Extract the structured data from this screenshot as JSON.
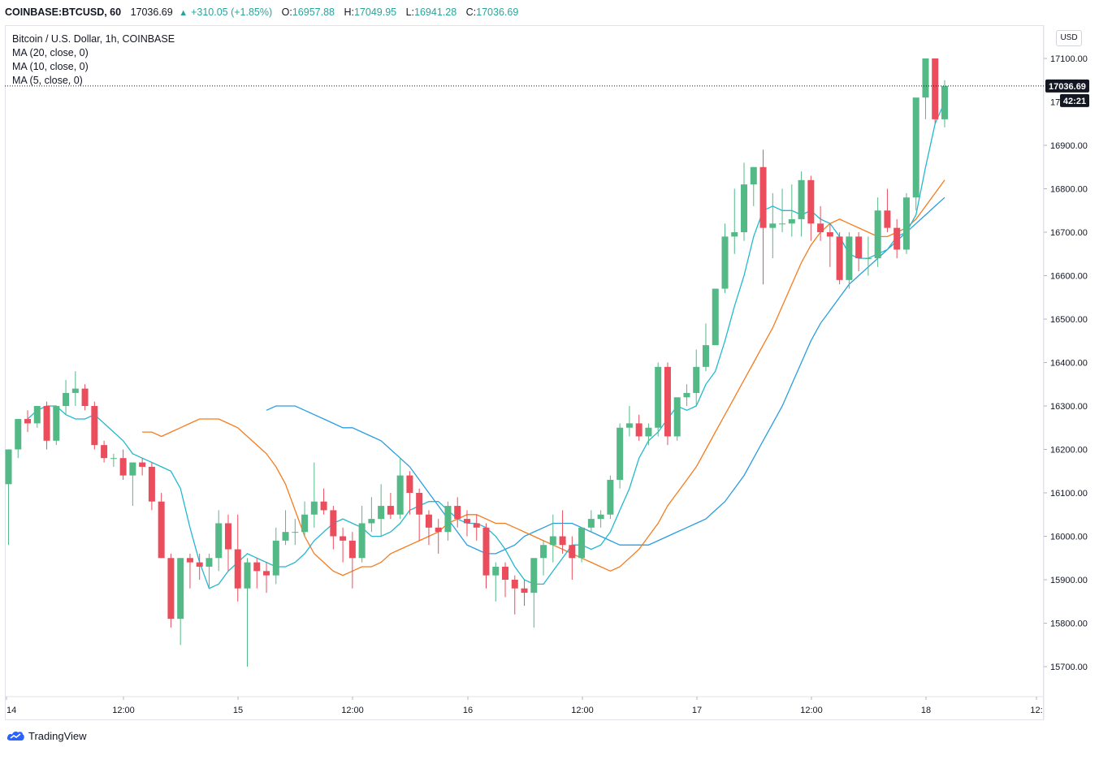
{
  "header": {
    "symbol": "COINBASE:BTCUSD, 60",
    "last": "17036.69",
    "change": "+310.05 (+1.85%)",
    "o_label": "O:",
    "o_value": "16957.88",
    "h_label": "H:",
    "h_value": "17049.95",
    "l_label": "L:",
    "l_value": "16941.28",
    "c_label": "C:",
    "c_value": "17036.69"
  },
  "legend": {
    "title": "Bitcoin / U.S. Dollar, 1h, COINBASE",
    "ma20": "MA (20, close, 0)",
    "ma10": "MA (10, close, 0)",
    "ma5": "MA (5, close, 0)"
  },
  "currency_button": "USD",
  "brand": "TradingView",
  "colors": {
    "up": "#53b987",
    "down": "#eb4d5c",
    "ma5": "#22b9cf",
    "ma10": "#f57c1f",
    "ma20": "#2a9de1",
    "axis_text": "#131722",
    "grid_line": "#e0e3eb"
  },
  "chart_data": {
    "type": "candlestick",
    "title": "Bitcoin / U.S. Dollar, 1h, COINBASE",
    "y_ticks": [
      15700,
      15800,
      15900,
      16000,
      16100,
      16200,
      16300,
      16400,
      16500,
      16600,
      16700,
      16800,
      16900,
      17100
    ],
    "y_tick_labels": [
      "15700.00",
      "15800.00",
      "15900.00",
      "16000.00",
      "16100.00",
      "16200.00",
      "16300.00",
      "16400.00",
      "16500.00",
      "16600.00",
      "16700.00",
      "16800.00",
      "16900.00",
      "17100.00"
    ],
    "x_tick_labels": [
      "14",
      "12:00",
      "15",
      "12:00",
      "16",
      "12:00",
      "17",
      "12:00",
      "18",
      "12:"
    ],
    "last_price_label": "17036.69",
    "countdown_label": "42:21",
    "candles_ohlc": [
      [
        16120,
        16200,
        15980,
        16200
      ],
      [
        16200,
        16270,
        16180,
        16270
      ],
      [
        16270,
        16290,
        16240,
        16260
      ],
      [
        16260,
        16300,
        16250,
        16300
      ],
      [
        16300,
        16310,
        16200,
        16220
      ],
      [
        16220,
        16300,
        16210,
        16300
      ],
      [
        16300,
        16360,
        16280,
        16330
      ],
      [
        16330,
        16380,
        16300,
        16340
      ],
      [
        16340,
        16350,
        16290,
        16300
      ],
      [
        16300,
        16310,
        16200,
        16210
      ],
      [
        16210,
        16220,
        16170,
        16180
      ],
      [
        16180,
        16190,
        16160,
        16180
      ],
      [
        16180,
        16200,
        16130,
        16140
      ],
      [
        16140,
        16170,
        16070,
        16170
      ],
      [
        16170,
        16180,
        16140,
        16160
      ],
      [
        16160,
        16170,
        16060,
        16080
      ],
      [
        16080,
        16100,
        15950,
        15950
      ],
      [
        15950,
        15960,
        15790,
        15810
      ],
      [
        15810,
        15950,
        15750,
        15950
      ],
      [
        15950,
        15960,
        15880,
        15940
      ],
      [
        15940,
        15960,
        15900,
        15930
      ],
      [
        15930,
        15960,
        15880,
        15950
      ],
      [
        15950,
        16060,
        15920,
        16030
      ],
      [
        16030,
        16050,
        15920,
        15970
      ],
      [
        15970,
        16050,
        15850,
        15880
      ],
      [
        15880,
        15950,
        15700,
        15940
      ],
      [
        15940,
        15950,
        15880,
        15920
      ],
      [
        15920,
        15940,
        15870,
        15910
      ],
      [
        15910,
        16020,
        15890,
        15990
      ],
      [
        15990,
        16060,
        15980,
        16010
      ],
      [
        16010,
        16040,
        15980,
        16010
      ],
      [
        16010,
        16080,
        16000,
        16050
      ],
      [
        16050,
        16170,
        16020,
        16080
      ],
      [
        16080,
        16110,
        16050,
        16060
      ],
      [
        16060,
        16070,
        15970,
        16000
      ],
      [
        16000,
        16020,
        15940,
        15990
      ],
      [
        15990,
        16010,
        15880,
        15950
      ],
      [
        15950,
        16070,
        15940,
        16030
      ],
      [
        16030,
        16090,
        16010,
        16040
      ],
      [
        16040,
        16120,
        16000,
        16070
      ],
      [
        16070,
        16100,
        16040,
        16050
      ],
      [
        16050,
        16180,
        16040,
        16140
      ],
      [
        16140,
        16150,
        16050,
        16100
      ],
      [
        16100,
        16110,
        15990,
        16050
      ],
      [
        16050,
        16060,
        15980,
        16020
      ],
      [
        16020,
        16040,
        15960,
        16010
      ],
      [
        16010,
        16080,
        15990,
        16070
      ],
      [
        16070,
        16090,
        16020,
        16040
      ],
      [
        16040,
        16060,
        16000,
        16030
      ],
      [
        16030,
        16050,
        15990,
        16020
      ],
      [
        16020,
        16030,
        15880,
        15910
      ],
      [
        15910,
        15940,
        15850,
        15930
      ],
      [
        15930,
        15940,
        15860,
        15900
      ],
      [
        15900,
        15910,
        15820,
        15880
      ],
      [
        15880,
        15900,
        15840,
        15870
      ],
      [
        15870,
        15940,
        15790,
        15950
      ],
      [
        15950,
        15990,
        15910,
        15980
      ],
      [
        15980,
        16050,
        15940,
        16000
      ],
      [
        16000,
        16060,
        15960,
        15980
      ],
      [
        15980,
        16000,
        15900,
        15950
      ],
      [
        15950,
        16020,
        15940,
        16020
      ],
      [
        16020,
        16060,
        16010,
        16040
      ],
      [
        16040,
        16060,
        16020,
        16050
      ],
      [
        16050,
        16140,
        16040,
        16130
      ],
      [
        16130,
        16260,
        16110,
        16250
      ],
      [
        16250,
        16300,
        16230,
        16260
      ],
      [
        16260,
        16280,
        16220,
        16230
      ],
      [
        16230,
        16260,
        16210,
        16250
      ],
      [
        16250,
        16400,
        16230,
        16390
      ],
      [
        16390,
        16400,
        16210,
        16230
      ],
      [
        16230,
        16310,
        16220,
        16320
      ],
      [
        16320,
        16350,
        16300,
        16330
      ],
      [
        16330,
        16430,
        16300,
        16390
      ],
      [
        16390,
        16490,
        16380,
        16440
      ],
      [
        16440,
        16560,
        16440,
        16570
      ],
      [
        16570,
        16720,
        16560,
        16690
      ],
      [
        16690,
        16800,
        16650,
        16700
      ],
      [
        16700,
        16860,
        16680,
        16810
      ],
      [
        16810,
        16850,
        16760,
        16850
      ],
      [
        16850,
        16890,
        16580,
        16710
      ],
      [
        16710,
        16790,
        16640,
        16720
      ],
      [
        16720,
        16800,
        16700,
        16720
      ],
      [
        16720,
        16810,
        16690,
        16730
      ],
      [
        16730,
        16840,
        16690,
        16820
      ],
      [
        16820,
        16830,
        16680,
        16720
      ],
      [
        16720,
        16760,
        16680,
        16700
      ],
      [
        16700,
        16720,
        16620,
        16690
      ],
      [
        16690,
        16700,
        16580,
        16590
      ],
      [
        16590,
        16700,
        16570,
        16690
      ],
      [
        16690,
        16700,
        16610,
        16640
      ],
      [
        16640,
        16690,
        16600,
        16640
      ],
      [
        16640,
        16780,
        16620,
        16750
      ],
      [
        16750,
        16800,
        16700,
        16710
      ],
      [
        16710,
        16730,
        16640,
        16660
      ],
      [
        16660,
        16790,
        16650,
        16780
      ],
      [
        16780,
        17000,
        16750,
        17010
      ],
      [
        17010,
        17100,
        16960,
        17100
      ],
      [
        17100,
        17100,
        16950,
        16960
      ],
      [
        16960,
        17049.95,
        16941.28,
        17036.69
      ]
    ],
    "ma5": [
      16270,
      16290,
      16300,
      16300,
      16280,
      16270,
      16270,
      16280,
      16260,
      16240,
      16220,
      16190,
      16180,
      16170,
      16160,
      16150,
      16110,
      16020,
      15940,
      15880,
      15890,
      15920,
      15940,
      15960,
      15950,
      15940,
      15930,
      15930,
      15940,
      15960,
      15990,
      16010,
      16030,
      16040,
      16030,
      16020,
      16000,
      16000,
      16010,
      16030,
      16060,
      16070,
      16080,
      16080,
      16060,
      16040,
      16030,
      16030,
      16020,
      16000,
      15970,
      15930,
      15900,
      15890,
      15890,
      15920,
      15950,
      15980,
      15980,
      15970,
      15980,
      16010,
      16060,
      16110,
      16180,
      16220,
      16240,
      16270,
      16300,
      16290,
      16300,
      16350,
      16380,
      16450,
      16530,
      16600,
      16690,
      16750,
      16760,
      16750,
      16750,
      16740,
      16750,
      16730,
      16720,
      16690,
      16650,
      16640,
      16640,
      16650,
      16660,
      16690,
      16700,
      16740,
      16850,
      16950,
      17000
    ],
    "ma10": [
      16240,
      16240,
      16230,
      16240,
      16250,
      16260,
      16270,
      16270,
      16270,
      16260,
      16250,
      16230,
      16210,
      16190,
      16160,
      16120,
      16060,
      16000,
      15960,
      15940,
      15920,
      15910,
      15920,
      15930,
      15930,
      15940,
      15960,
      15970,
      15980,
      15990,
      16000,
      16010,
      16030,
      16040,
      16050,
      16050,
      16040,
      16030,
      16030,
      16020,
      16010,
      16000,
      15990,
      15980,
      15970,
      15960,
      15950,
      15940,
      15930,
      15920,
      15930,
      15950,
      15970,
      16000,
      16030,
      16070,
      16100,
      16130,
      16160,
      16200,
      16240,
      16280,
      16320,
      16360,
      16400,
      16440,
      16480,
      16530,
      16580,
      16630,
      16670,
      16700,
      16720,
      16730,
      16720,
      16710,
      16700,
      16690,
      16690,
      16700,
      16710,
      16730,
      16760,
      16790,
      16820
    ],
    "ma20": [
      16290,
      16300,
      16300,
      16300,
      16290,
      16280,
      16270,
      16260,
      16250,
      16250,
      16240,
      16230,
      16220,
      16200,
      16180,
      16160,
      16130,
      16100,
      16070,
      16040,
      16010,
      15980,
      15970,
      15960,
      15960,
      15970,
      15980,
      16000,
      16010,
      16020,
      16030,
      16030,
      16030,
      16020,
      16010,
      16000,
      15990,
      15980,
      15980,
      15980,
      15980,
      15990,
      16000,
      16010,
      16020,
      16030,
      16040,
      16060,
      16080,
      16110,
      16140,
      16180,
      16220,
      16260,
      16300,
      16350,
      16400,
      16450,
      16490,
      16520,
      16550,
      16580,
      16600,
      16620,
      16640,
      16660,
      16680,
      16700,
      16720,
      16740,
      16760,
      16780
    ]
  }
}
